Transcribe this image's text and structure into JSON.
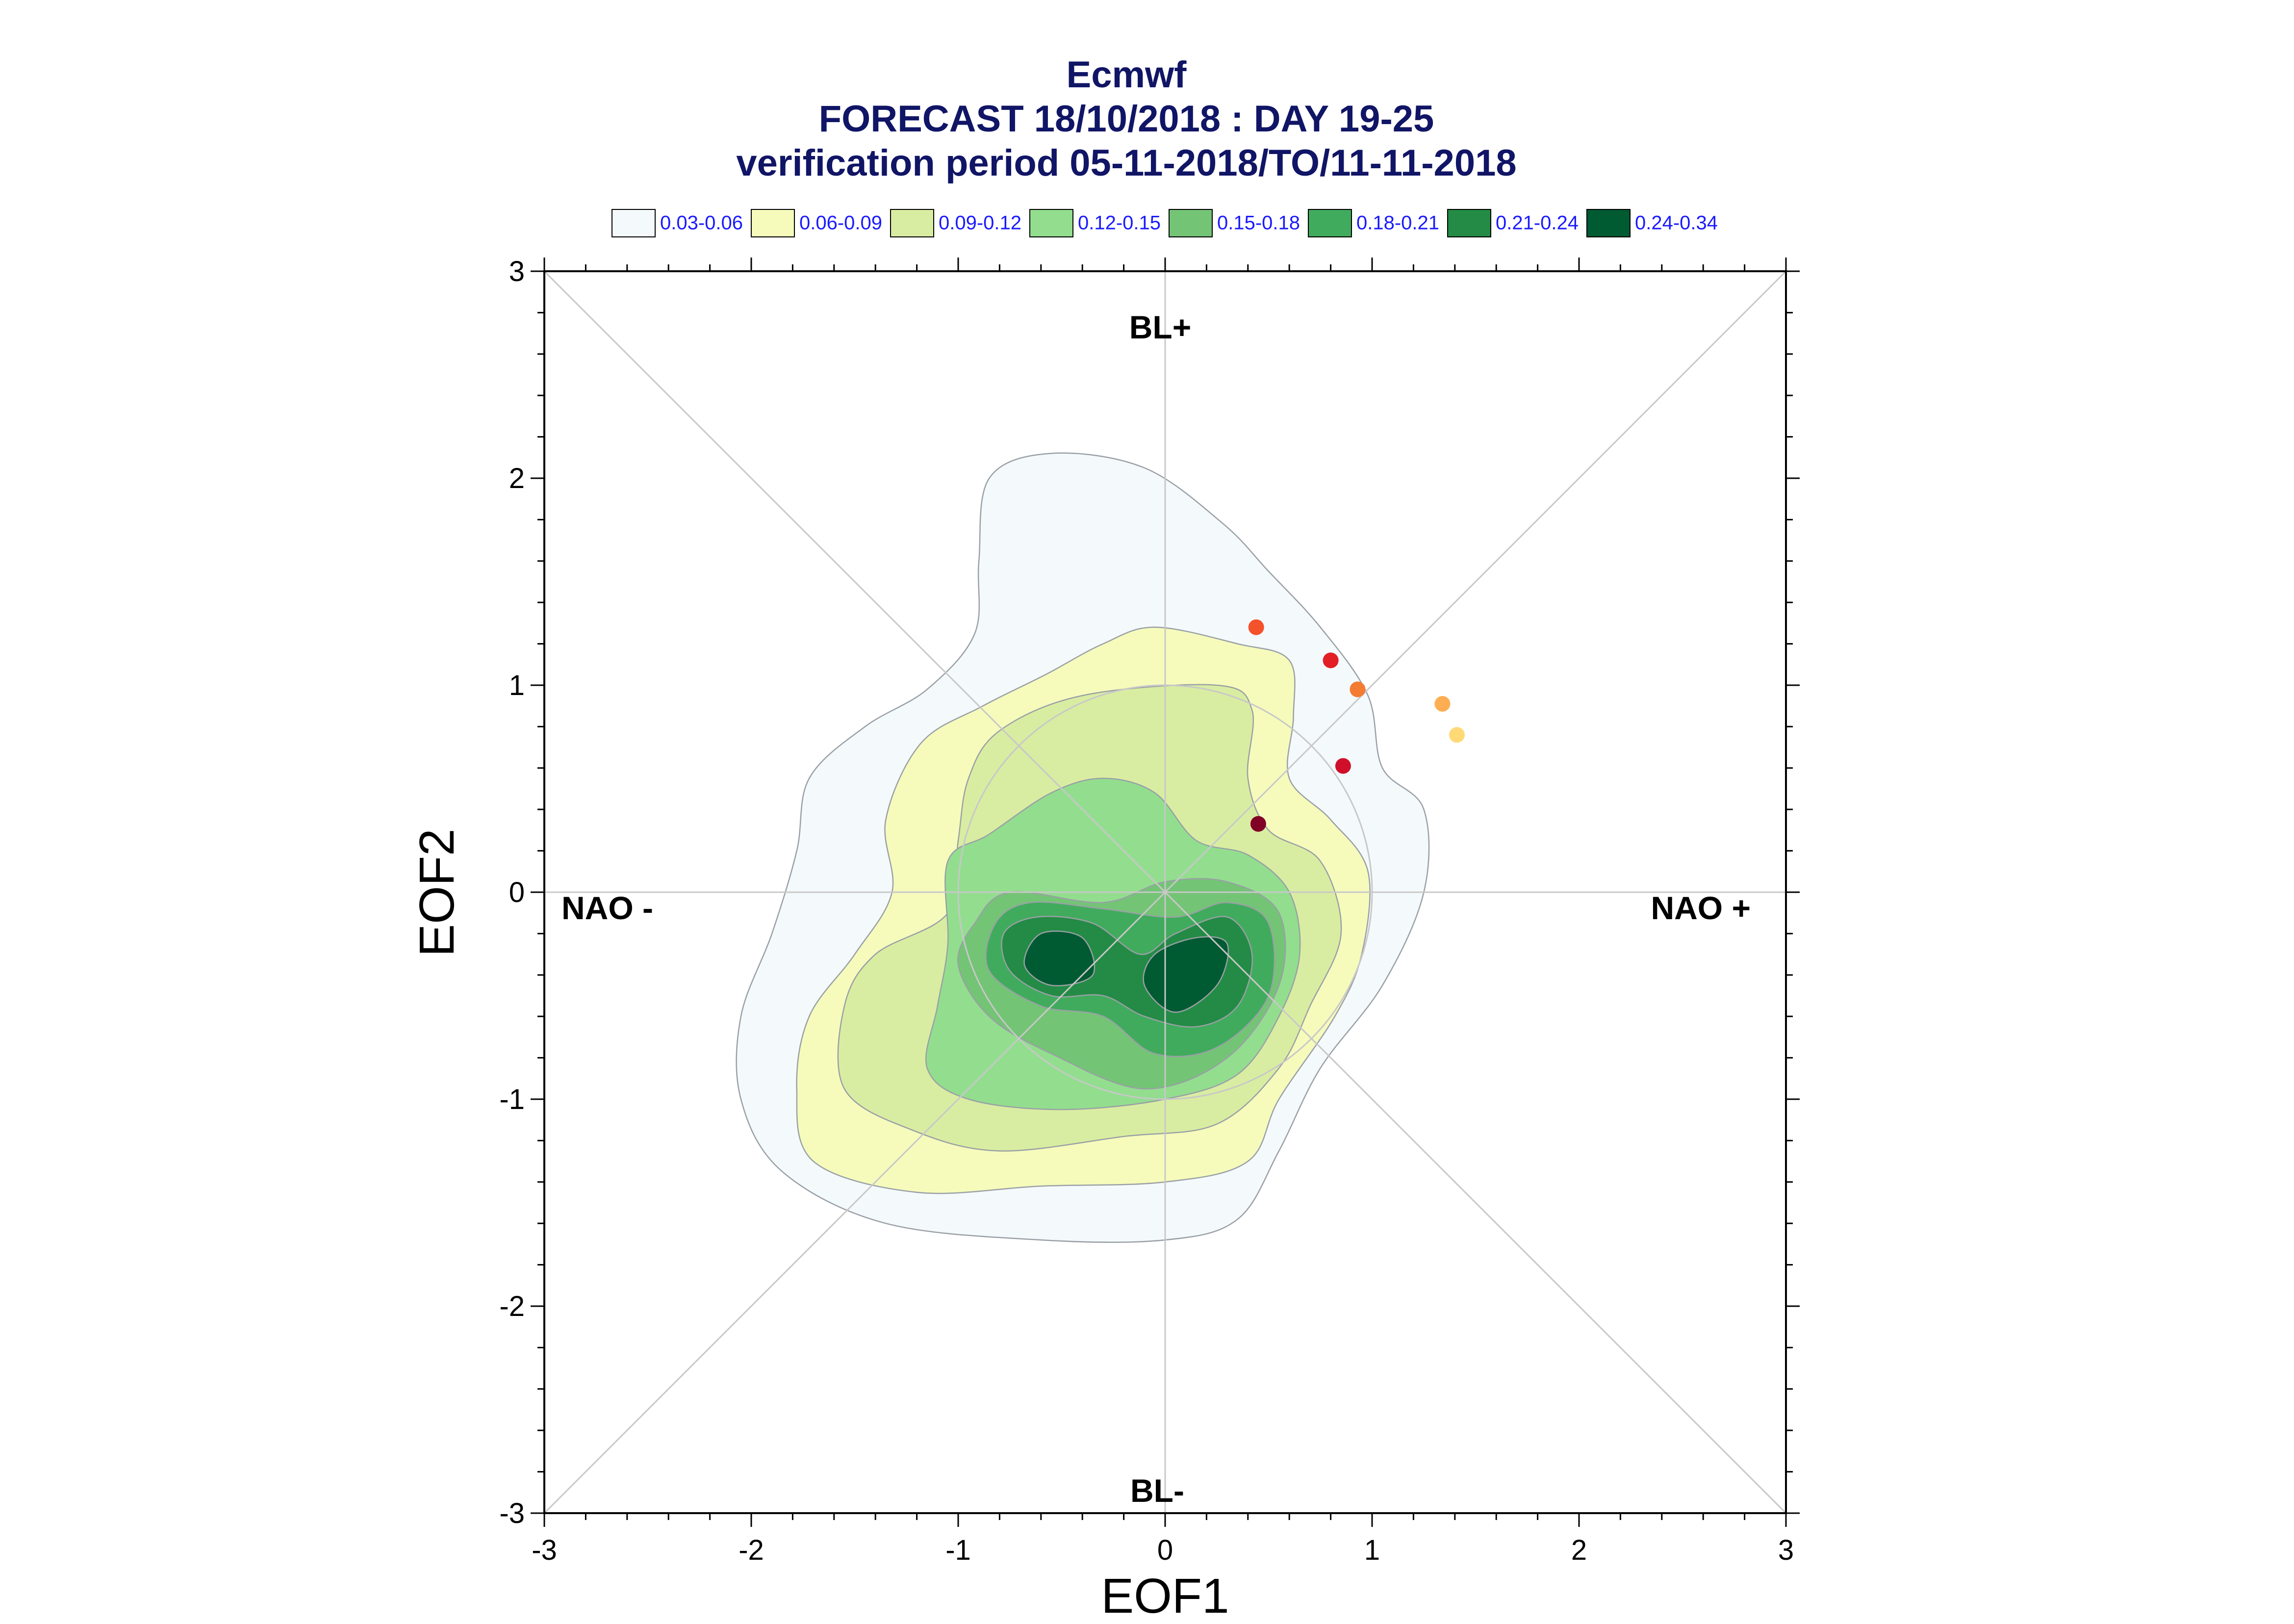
{
  "chart_data": {
    "type": "scatter",
    "title": "Ecmwf",
    "subtitle": [
      "FORECAST 18/10/2018 : DAY 19-25",
      "verification period 05-11-2018/TO/11-11-2018"
    ],
    "xlabel": "EOF1",
    "ylabel": "EOF2",
    "xlim": [
      -3,
      3
    ],
    "ylim": [
      -3,
      3
    ],
    "x_ticks": [
      "-3",
      "-2",
      "-1",
      "0",
      "1",
      "2",
      "3"
    ],
    "y_ticks": [
      "-3",
      "-2",
      "-1",
      "0",
      "1",
      "2",
      "3"
    ],
    "grid": false,
    "legend_position": "top",
    "legend": [
      {
        "label": "0.03-0.06",
        "color": "#f4f9fc"
      },
      {
        "label": "0.06-0.09",
        "color": "#f6fbbc"
      },
      {
        "label": "0.09-0.12",
        "color": "#d9eda2"
      },
      {
        "label": "0.12-0.15",
        "color": "#92de8e"
      },
      {
        "label": "0.15-0.18",
        "color": "#74c476"
      },
      {
        "label": "0.18-0.21",
        "color": "#41ab5d"
      },
      {
        "label": "0.21-0.24",
        "color": "#238b45"
      },
      {
        "label": "0.24-0.34",
        "color": "#005a32"
      }
    ],
    "regime_labels": {
      "top": "BL+",
      "bottom": "BL-",
      "left": "NAO -",
      "right": "NAO +"
    },
    "reference_circle_radius": 1.0,
    "density_contours": [
      {
        "level": "0.03-0.06",
        "color": "#f4f9fc",
        "points": [
          [
            -0.85,
            2.0
          ],
          [
            -0.55,
            2.12
          ],
          [
            -0.1,
            2.05
          ],
          [
            0.28,
            1.78
          ],
          [
            0.5,
            1.55
          ],
          [
            0.75,
            1.28
          ],
          [
            0.98,
            0.95
          ],
          [
            1.05,
            0.6
          ],
          [
            1.25,
            0.4
          ],
          [
            1.25,
            0.0
          ],
          [
            1.05,
            -0.45
          ],
          [
            0.75,
            -0.85
          ],
          [
            0.55,
            -1.25
          ],
          [
            0.35,
            -1.58
          ],
          [
            0.0,
            -1.68
          ],
          [
            -0.6,
            -1.68
          ],
          [
            -1.35,
            -1.6
          ],
          [
            -1.85,
            -1.35
          ],
          [
            -2.05,
            -1.0
          ],
          [
            -2.05,
            -0.6
          ],
          [
            -1.9,
            -0.2
          ],
          [
            -1.78,
            0.2
          ],
          [
            -1.72,
            0.55
          ],
          [
            -1.45,
            0.8
          ],
          [
            -1.15,
            0.98
          ],
          [
            -0.92,
            1.25
          ],
          [
            -0.9,
            1.6
          ]
        ]
      },
      {
        "level": "0.06-0.09",
        "color": "#f6fbbc",
        "points": [
          [
            -0.05,
            1.28
          ],
          [
            0.35,
            1.2
          ],
          [
            0.6,
            1.12
          ],
          [
            0.62,
            0.85
          ],
          [
            0.6,
            0.55
          ],
          [
            0.8,
            0.35
          ],
          [
            0.98,
            0.1
          ],
          [
            0.95,
            -0.3
          ],
          [
            0.82,
            -0.6
          ],
          [
            0.55,
            -1.0
          ],
          [
            0.4,
            -1.3
          ],
          [
            0.0,
            -1.4
          ],
          [
            -0.6,
            -1.42
          ],
          [
            -1.2,
            -1.45
          ],
          [
            -1.7,
            -1.3
          ],
          [
            -1.78,
            -0.95
          ],
          [
            -1.72,
            -0.6
          ],
          [
            -1.5,
            -0.3
          ],
          [
            -1.32,
            0.0
          ],
          [
            -1.35,
            0.35
          ],
          [
            -1.18,
            0.72
          ],
          [
            -0.88,
            0.9
          ],
          [
            -0.58,
            1.05
          ],
          [
            -0.3,
            1.2
          ]
        ]
      },
      {
        "level": "0.09-0.12",
        "color": "#d9eda2",
        "points": [
          [
            -0.4,
            0.95
          ],
          [
            0.25,
            1.0
          ],
          [
            0.42,
            0.88
          ],
          [
            0.4,
            0.55
          ],
          [
            0.5,
            0.3
          ],
          [
            0.75,
            0.15
          ],
          [
            0.85,
            -0.2
          ],
          [
            0.7,
            -0.55
          ],
          [
            0.55,
            -0.85
          ],
          [
            0.25,
            -1.12
          ],
          [
            -0.2,
            -1.18
          ],
          [
            -0.8,
            -1.25
          ],
          [
            -1.22,
            -1.15
          ],
          [
            -1.55,
            -0.95
          ],
          [
            -1.55,
            -0.55
          ],
          [
            -1.4,
            -0.3
          ],
          [
            -1.05,
            -0.1
          ],
          [
            -1.0,
            0.25
          ],
          [
            -0.95,
            0.55
          ],
          [
            -0.8,
            0.78
          ]
        ]
      },
      {
        "level": "0.12-0.15",
        "color": "#92de8e",
        "points": [
          [
            -0.55,
            0.48
          ],
          [
            -0.3,
            0.55
          ],
          [
            -0.05,
            0.48
          ],
          [
            0.15,
            0.25
          ],
          [
            0.4,
            0.18
          ],
          [
            0.6,
            0.0
          ],
          [
            0.65,
            -0.3
          ],
          [
            0.55,
            -0.6
          ],
          [
            0.35,
            -0.88
          ],
          [
            0.0,
            -1.0
          ],
          [
            -0.5,
            -1.05
          ],
          [
            -0.95,
            -1.0
          ],
          [
            -1.15,
            -0.85
          ],
          [
            -1.1,
            -0.55
          ],
          [
            -1.05,
            -0.25
          ],
          [
            -1.05,
            0.15
          ],
          [
            -0.85,
            0.28
          ]
        ]
      },
      {
        "level": "0.15-0.18",
        "color": "#74c476",
        "points": [
          [
            -0.75,
            0.0
          ],
          [
            -0.3,
            -0.05
          ],
          [
            0.0,
            0.05
          ],
          [
            0.3,
            0.05
          ],
          [
            0.55,
            -0.1
          ],
          [
            0.55,
            -0.45
          ],
          [
            0.3,
            -0.8
          ],
          [
            -0.1,
            -0.95
          ],
          [
            -0.55,
            -0.78
          ],
          [
            -0.85,
            -0.6
          ],
          [
            -1.0,
            -0.35
          ],
          [
            -0.92,
            -0.15
          ]
        ]
      },
      {
        "level": "0.18-0.21",
        "color": "#41ab5d",
        "points": [
          [
            -0.65,
            -0.05
          ],
          [
            -0.3,
            -0.08
          ],
          [
            0.05,
            -0.12
          ],
          [
            0.3,
            -0.05
          ],
          [
            0.5,
            -0.15
          ],
          [
            0.5,
            -0.5
          ],
          [
            0.25,
            -0.75
          ],
          [
            -0.05,
            -0.78
          ],
          [
            -0.3,
            -0.6
          ],
          [
            -0.6,
            -0.55
          ],
          [
            -0.85,
            -0.38
          ],
          [
            -0.82,
            -0.15
          ]
        ]
      },
      {
        "level": "0.21-0.24",
        "color": "#238b45",
        "points": [
          [
            -0.62,
            -0.12
          ],
          [
            -0.35,
            -0.15
          ],
          [
            -0.12,
            -0.3
          ],
          [
            0.05,
            -0.2
          ],
          [
            0.3,
            -0.12
          ],
          [
            0.42,
            -0.3
          ],
          [
            0.35,
            -0.55
          ],
          [
            0.15,
            -0.65
          ],
          [
            -0.1,
            -0.6
          ],
          [
            -0.3,
            -0.5
          ],
          [
            -0.55,
            -0.5
          ],
          [
            -0.75,
            -0.38
          ],
          [
            -0.78,
            -0.2
          ]
        ]
      },
      {
        "level": "0.24-0.34",
        "color": "#005a32",
        "points": [
          [
            -0.6,
            -0.2
          ],
          [
            -0.4,
            -0.22
          ],
          [
            -0.35,
            -0.4
          ],
          [
            -0.55,
            -0.45
          ],
          [
            -0.68,
            -0.35
          ]
        ]
      },
      {
        "level": "0.24-0.34",
        "color": "#005a32",
        "points": [
          [
            -0.05,
            -0.3
          ],
          [
            0.15,
            -0.22
          ],
          [
            0.3,
            -0.25
          ],
          [
            0.25,
            -0.45
          ],
          [
            0.05,
            -0.58
          ],
          [
            -0.1,
            -0.45
          ]
        ]
      }
    ],
    "points": [
      {
        "x": 0.44,
        "y": 1.28,
        "color": "#f4522b"
      },
      {
        "x": 0.8,
        "y": 1.12,
        "color": "#e31f26"
      },
      {
        "x": 0.93,
        "y": 0.98,
        "color": "#f47b32"
      },
      {
        "x": 1.34,
        "y": 0.91,
        "color": "#fdae52"
      },
      {
        "x": 1.41,
        "y": 0.76,
        "color": "#fed976"
      },
      {
        "x": 0.86,
        "y": 0.61,
        "color": "#d0102a"
      },
      {
        "x": 0.45,
        "y": 0.33,
        "color": "#800026"
      }
    ]
  }
}
